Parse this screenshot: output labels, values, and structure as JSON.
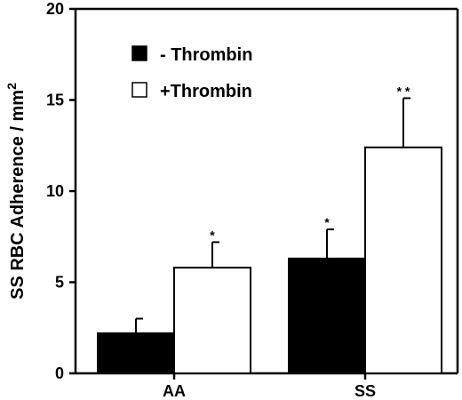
{
  "chart_data": {
    "type": "bar",
    "categories": [
      "AA",
      "SS"
    ],
    "series": [
      {
        "name": "- Thrombin",
        "values": [
          2.2,
          6.3
        ],
        "errors": [
          0.8,
          1.6
        ],
        "significance": [
          "",
          "*"
        ],
        "fill": "#000000"
      },
      {
        "name": "+Thrombin",
        "values": [
          5.8,
          12.4
        ],
        "errors": [
          1.4,
          2.7
        ],
        "significance": [
          "*",
          "* *"
        ],
        "fill": "#ffffff"
      }
    ],
    "ylabel": "SS RBC Adherence / mm",
    "ylabel_superscript": "2",
    "ylim": [
      0,
      20
    ],
    "yticks": [
      0,
      5,
      10,
      15,
      20
    ],
    "ytick_labels": [
      "0",
      "5",
      "10",
      "15",
      "20"
    ],
    "legend_position": "top-left",
    "grid": false
  }
}
